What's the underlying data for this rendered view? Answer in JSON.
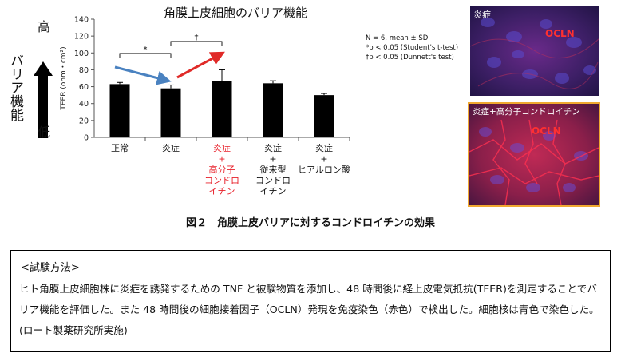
{
  "axis_arrow": {
    "high": "高",
    "label": "バリア機能",
    "low": "低"
  },
  "stats_note": [
    "N = 6, mean ± SD",
    "*p < 0.05 (Student's t-test)",
    "†p < 0.05 (Dunnett's test)"
  ],
  "micrographs": [
    {
      "label": "炎症",
      "marker": "OCLN",
      "highlight": false
    },
    {
      "label": "炎症+高分子コンドロイチン",
      "marker": "OCLN",
      "highlight": true
    }
  ],
  "figure_caption": "図２　角膜上皮バリアに対するコンドロイチンの効果",
  "method": {
    "heading": "<試験方法>",
    "body": "ヒト角膜上皮細胞株に炎症を誘発するための TNF と被験物質を添加し、48 時間後に経上皮電気抵抗(TEER)を測定することでバリア機能を評価した。また 48 時間後の細胞接着因子（OCLN）発現を免疫染色（赤色）で検出した。細胞核は青色で染色した。(ロート製薬研究所実施)"
  },
  "colors": {
    "bar": "#000000",
    "highlight_text": "#e8202a",
    "arrow_down": "#4a82c0",
    "arrow_up": "#e02a28",
    "highlight_border": "#f0a830"
  },
  "chart_data": {
    "type": "bar",
    "title": "角膜上皮細胞のバリア機能",
    "ylabel": "TEER (ohm・cm²)",
    "ylim": [
      0,
      140
    ],
    "yticks": [
      0,
      20,
      40,
      60,
      80,
      100,
      120,
      140
    ],
    "categories": [
      [
        "正常"
      ],
      [
        "炎症"
      ],
      [
        "炎症",
        "+",
        "高分子",
        "コンドロ",
        "イチン"
      ],
      [
        "炎症",
        "+",
        "従来型",
        "コンドロ",
        "イチン"
      ],
      [
        "炎症",
        "+",
        "ヒアルロン酸"
      ]
    ],
    "highlight_category": 2,
    "values": [
      63,
      58,
      67,
      64,
      50
    ],
    "errors": [
      2,
      4,
      13,
      3,
      2
    ],
    "significance": [
      {
        "from": 0,
        "to": 1,
        "label": "*"
      },
      {
        "from": 1,
        "to": 2,
        "label": "†"
      }
    ]
  }
}
